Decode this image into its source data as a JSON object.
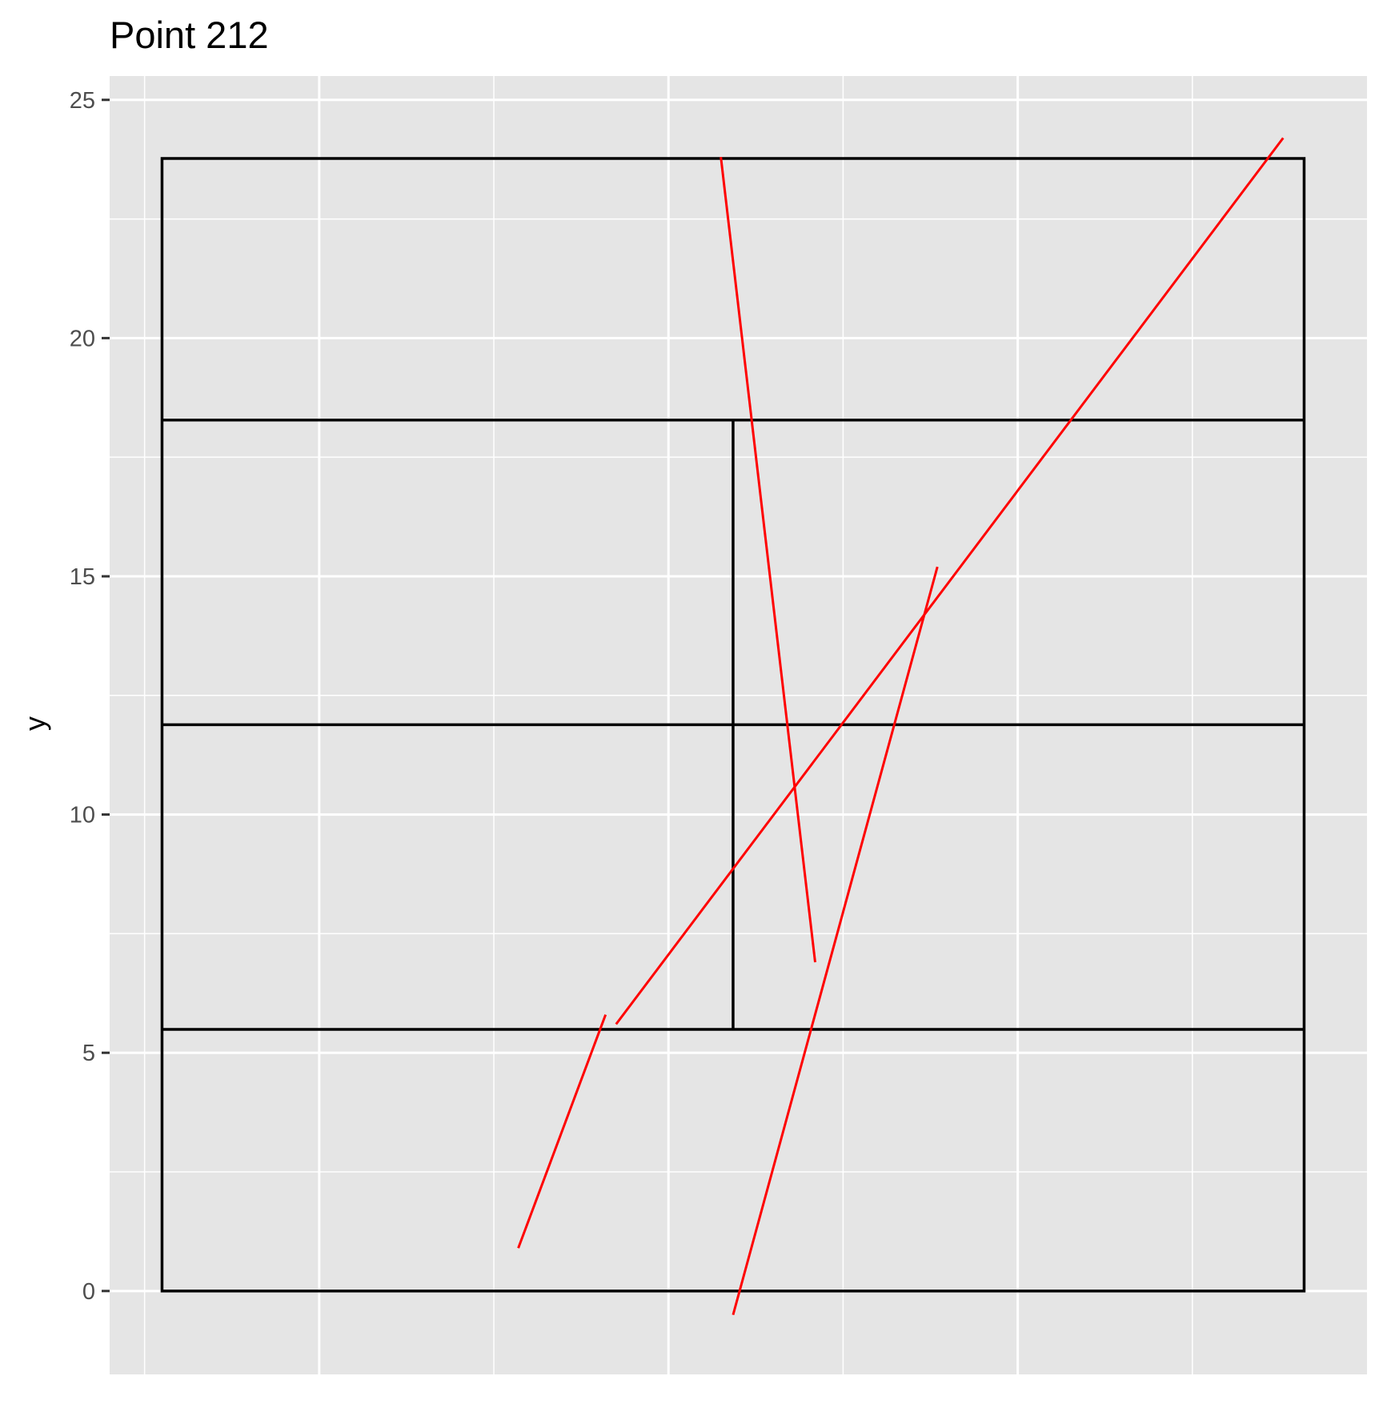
{
  "chart_data": {
    "type": "line",
    "title": "Point 212",
    "xlabel": "",
    "ylabel": "y",
    "xlim": [
      -16,
      20
    ],
    "ylim": [
      -1.75,
      25.5
    ],
    "x_gridlines_major": [
      -15,
      -5,
      5,
      15
    ],
    "x_gridlines_minor": [
      -10,
      0,
      10
    ],
    "y_ticks": [
      0,
      5,
      10,
      15,
      20,
      25
    ],
    "y_tick_labels": [
      "0",
      "5",
      "10",
      "15",
      "20",
      "25"
    ],
    "grid": true,
    "legend": "none",
    "colors": {
      "panel_background": "#e5e5e5",
      "grid": "#ffffff",
      "court_lines": "#000000",
      "trajectories": "#ff0000",
      "tick_labels": "#4d4d4d"
    },
    "court": {
      "outline": {
        "x0": -14.5,
        "x1": 18.2,
        "y0": 0,
        "y1": 23.77
      },
      "horizontal_lines": [
        {
          "x0": -14.5,
          "x1": 18.2,
          "y": 5.49
        },
        {
          "x0": -14.5,
          "x1": 18.2,
          "y": 11.885
        },
        {
          "x0": -14.5,
          "x1": 18.2,
          "y": 18.28
        }
      ],
      "vertical_lines": [
        {
          "x": 1.85,
          "y0": 5.49,
          "y1": 18.28
        }
      ]
    },
    "series": [
      {
        "values": [
          {
            "x": -4.3,
            "y": 0.9
          },
          {
            "x": -1.8,
            "y": 5.8
          }
        ]
      },
      {
        "values": [
          {
            "x": -1.5,
            "y": 5.6
          },
          {
            "x": 17.6,
            "y": 24.2
          }
        ]
      },
      {
        "values": [
          {
            "x": 1.5,
            "y": 23.8
          },
          {
            "x": 4.2,
            "y": 6.9
          }
        ]
      },
      {
        "values": [
          {
            "x": 1.85,
            "y": -0.5
          },
          {
            "x": 7.7,
            "y": 15.2
          }
        ]
      }
    ]
  }
}
